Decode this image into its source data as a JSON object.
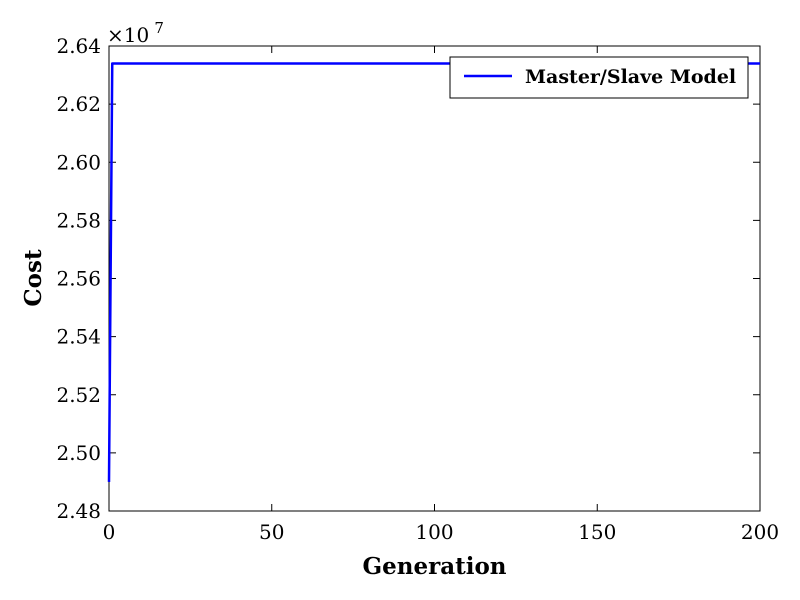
{
  "chart_data": {
    "type": "line",
    "title": "",
    "xlabel": "Generation",
    "ylabel": "Cost",
    "xlim": [
      0,
      200
    ],
    "ylim": [
      2.48,
      2.64
    ],
    "xticks": [
      0,
      50,
      100,
      150,
      200
    ],
    "xtick_labels": [
      "0",
      "50",
      "100",
      "150",
      "200"
    ],
    "yticks": [
      2.48,
      2.5,
      2.52,
      2.54,
      2.56,
      2.58,
      2.6,
      2.62,
      2.64
    ],
    "ytick_labels": [
      "2.48",
      "2.50",
      "2.52",
      "2.54",
      "2.56",
      "2.58",
      "2.60",
      "2.62",
      "2.64"
    ],
    "y_scale_multiplier": "×10",
    "y_scale_exponent": "7",
    "grid": false,
    "legend_position": "top-right",
    "series": [
      {
        "name": "Master/Slave Model",
        "color": "#0000ff",
        "x": [
          0,
          1,
          200
        ],
        "y": [
          2.49,
          2.634,
          2.634
        ]
      }
    ]
  }
}
